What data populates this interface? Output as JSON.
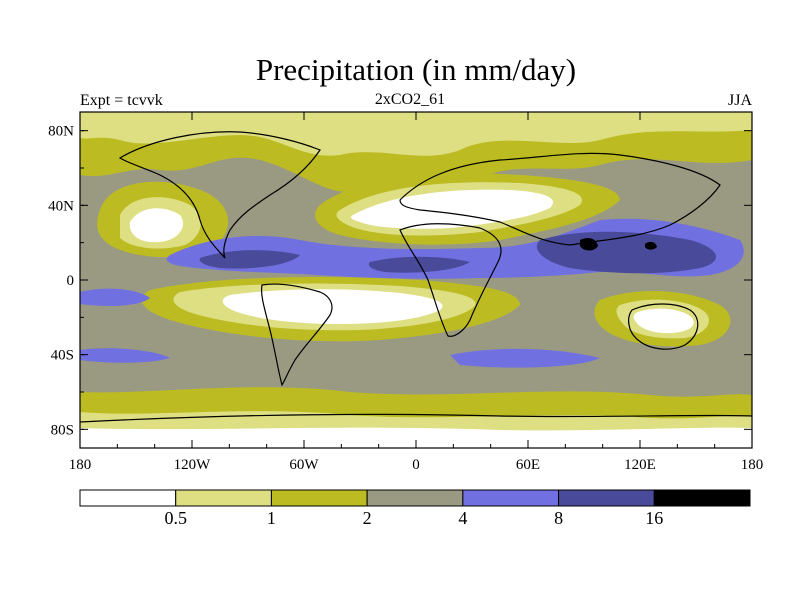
{
  "title": "Precipitation (in mm/day)",
  "subtitle": "2xCO2_61",
  "left_label": "Expt = tcvvk",
  "right_label": "JJA",
  "map": {
    "projection": "cylindrical equidistant",
    "lon_range": [
      -180,
      180
    ],
    "lat_range": [
      -90,
      90
    ],
    "lat_ticks": [
      {
        "value": 80,
        "label": "80N"
      },
      {
        "value": 40,
        "label": "40N"
      },
      {
        "value": 0,
        "label": "0"
      },
      {
        "value": -40,
        "label": "40S"
      },
      {
        "value": -80,
        "label": "80S"
      }
    ],
    "lon_ticks": [
      {
        "value": -180,
        "label": "180"
      },
      {
        "value": -120,
        "label": "120W"
      },
      {
        "value": -60,
        "label": "60W"
      },
      {
        "value": 0,
        "label": "0"
      },
      {
        "value": 60,
        "label": "60E"
      },
      {
        "value": 120,
        "label": "120E"
      },
      {
        "value": 180,
        "label": "180"
      }
    ]
  },
  "colorbar": {
    "colors": [
      "#ffffff",
      "#dede82",
      "#bcbc22",
      "#9a9a82",
      "#7070e0",
      "#4a4a9a",
      "#000000"
    ],
    "labels": [
      "0.5",
      "1",
      "2",
      "4",
      "8",
      "16"
    ]
  }
}
